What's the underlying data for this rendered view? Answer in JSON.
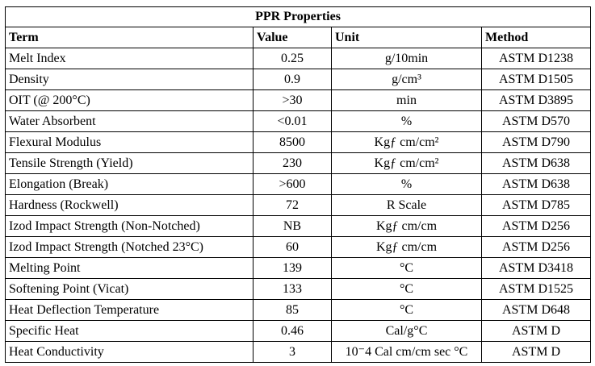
{
  "table": {
    "title": "PPR Properties",
    "headers": [
      "Term",
      "Value",
      "Unit",
      "Method"
    ],
    "rows": [
      [
        "Melt Index",
        "0.25",
        "g/10min",
        "ASTM D1238"
      ],
      [
        "Density",
        "0.9",
        "g/cm³",
        "ASTM D1505"
      ],
      [
        "OIT (@ 200°C)",
        ">30",
        "min",
        "ASTM D3895"
      ],
      [
        "Water Absorbent",
        "<0.01",
        "%",
        "ASTM D570"
      ],
      [
        "Flexural Modulus",
        "8500",
        "Kgƒ cm/cm²",
        "ASTM D790"
      ],
      [
        "Tensile Strength (Yield)",
        "230",
        "Kgƒ cm/cm²",
        "ASTM D638"
      ],
      [
        "Elongation (Break)",
        ">600",
        "%",
        "ASTM D638"
      ],
      [
        "Hardness (Rockwell)",
        "72",
        "R Scale",
        "ASTM D785"
      ],
      [
        "Izod Impact Strength (Non-Notched)",
        "NB",
        "Kgƒ cm/cm",
        "ASTM D256"
      ],
      [
        "Izod Impact Strength (Notched 23°C)",
        "60",
        "Kgƒ cm/cm",
        "ASTM D256"
      ],
      [
        "Melting Point",
        "139",
        "°C",
        "ASTM D3418"
      ],
      [
        "Softening Point (Vicat)",
        "133",
        "°C",
        "ASTM D1525"
      ],
      [
        "Heat Deflection Temperature",
        "85",
        "°C",
        "ASTM D648"
      ],
      [
        "Specific Heat",
        "0.46",
        "Cal/g°C",
        "ASTM D"
      ],
      [
        "Heat Conductivity",
        "3",
        "10⁻4 Cal cm/cm sec °C",
        "ASTM D"
      ]
    ]
  }
}
